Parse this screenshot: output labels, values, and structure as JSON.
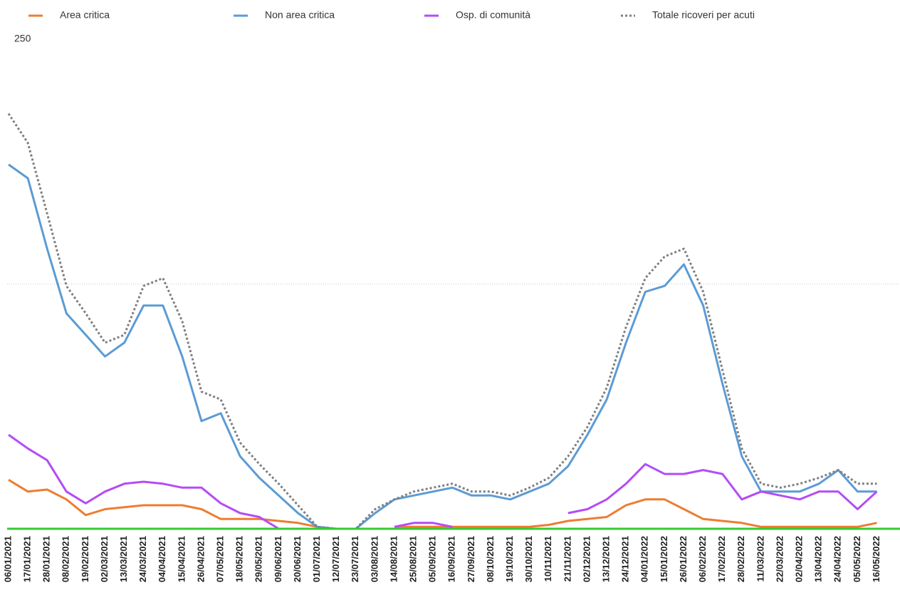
{
  "chart_data": {
    "type": "line",
    "categories": [
      "06/01/2021",
      "17/01/2021",
      "28/01/2021",
      "08/02/2021",
      "19/02/2021",
      "02/03/2021",
      "13/03/2021",
      "24/03/2021",
      "04/04/2021",
      "15/04/2021",
      "26/04/2021",
      "07/05/2021",
      "18/05/2021",
      "29/05/2021",
      "09/06/2021",
      "20/06/2021",
      "01/07/2021",
      "12/07/2021",
      "23/07/2021",
      "03/08/2021",
      "14/08/2021",
      "25/08/2021",
      "05/09/2021",
      "16/09/2021",
      "27/09/2021",
      "08/10/2021",
      "19/10/2021",
      "30/10/2021",
      "10/11/2021",
      "21/11/2021",
      "02/12/2021",
      "13/12/2021",
      "24/12/2021",
      "04/01/2022",
      "15/01/2022",
      "26/01/2022",
      "06/02/2022",
      "17/02/2022",
      "28/02/2022",
      "11/03/2022",
      "22/03/2022",
      "02/04/2022",
      "13/04/2022",
      "24/04/2022",
      "05/05/2022",
      "16/05/2022"
    ],
    "series": [
      {
        "name": "Area critica",
        "color": "#ed7d31",
        "style": "solid",
        "values": [
          25,
          19,
          20,
          15,
          7,
          10,
          11,
          12,
          12,
          12,
          10,
          5,
          5,
          5,
          4,
          3,
          1,
          null,
          null,
          null,
          1,
          1,
          1,
          1,
          1,
          1,
          1,
          1,
          2,
          4,
          5,
          6,
          12,
          15,
          15,
          10,
          5,
          4,
          3,
          1,
          1,
          1,
          1,
          1,
          1,
          3
        ]
      },
      {
        "name": "Non area critica",
        "color": "#5b9bd5",
        "style": "solid",
        "values": [
          186,
          179,
          143,
          110,
          99,
          88,
          95,
          114,
          114,
          88,
          55,
          59,
          37,
          26,
          17,
          8,
          1,
          0,
          0,
          8,
          15,
          17,
          19,
          21,
          17,
          17,
          15,
          19,
          23,
          32,
          48,
          66,
          95,
          121,
          124,
          135,
          114,
          74,
          37,
          19,
          19,
          19,
          23,
          30,
          19,
          19
        ]
      },
      {
        "name": "Osp. di comunità",
        "color": "#b44cf5",
        "style": "solid",
        "values": [
          48,
          41,
          35,
          19,
          13,
          19,
          23,
          24,
          23,
          21,
          21,
          13,
          8,
          6,
          0,
          null,
          null,
          null,
          null,
          null,
          1,
          3,
          3,
          1,
          null,
          null,
          null,
          null,
          null,
          8,
          10,
          15,
          23,
          33,
          28,
          28,
          30,
          28,
          15,
          19,
          17,
          15,
          19,
          19,
          10,
          19
        ]
      },
      {
        "name": "Totale ricoveri per acuti",
        "color": "#7f7f7f",
        "style": "dotted",
        "values": [
          212,
          197,
          161,
          124,
          110,
          95,
          99,
          124,
          128,
          106,
          70,
          66,
          44,
          33,
          23,
          12,
          1,
          0,
          0,
          10,
          15,
          19,
          21,
          23,
          19,
          19,
          17,
          21,
          26,
          37,
          52,
          72,
          103,
          128,
          139,
          143,
          121,
          81,
          41,
          23,
          21,
          23,
          26,
          30,
          23,
          23
        ]
      }
    ],
    "ylim": [
      0,
      250
    ],
    "yticks": [
      250
    ],
    "ygrid": [
      125
    ],
    "axis_line_color": "#33cc33"
  }
}
